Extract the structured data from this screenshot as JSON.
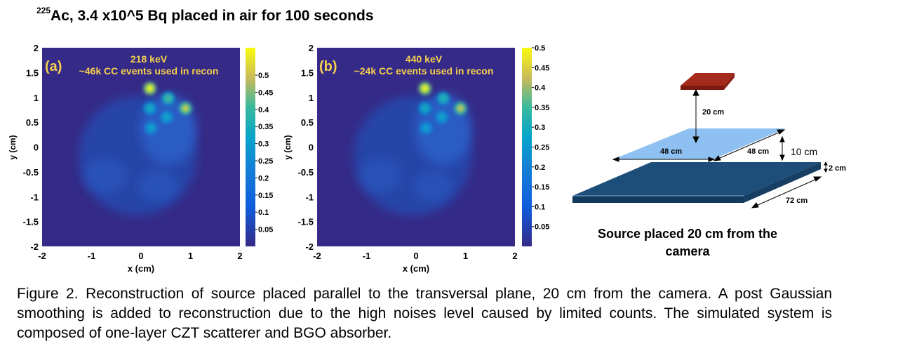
{
  "title": {
    "superscript": "225",
    "text": "Ac, 3.4 x10^5 Bq placed in air for 100 seconds"
  },
  "chart_data": [
    {
      "type": "heatmap",
      "panel_label": "(a)",
      "energy": "218 keV",
      "events": "~46k CC events used in recon",
      "xlabel": "x (cm)",
      "ylabel": "y (cm)",
      "xlim": [
        -2,
        2
      ],
      "ylim": [
        -2,
        2
      ],
      "x_ticks": [
        "-2",
        "-1",
        "0",
        "1",
        "2"
      ],
      "y_ticks": [
        "2",
        "1.5",
        "1",
        "0.5",
        "0",
        "-0.5",
        "-1",
        "-1.5",
        "-2"
      ],
      "colorbar_range": [
        0,
        0.58
      ],
      "colorbar_ticks": [
        "0.5",
        "0.45",
        "0.4",
        "0.35",
        "0.3",
        "0.25",
        "0.2",
        "0.15",
        "0.1",
        "0.05"
      ],
      "hotspots": [
        {
          "x": 0.18,
          "y": 1.18,
          "value": 0.58
        },
        {
          "x": 0.55,
          "y": 0.98,
          "value": 0.42
        },
        {
          "x": 0.9,
          "y": 0.78,
          "value": 0.52
        },
        {
          "x": 0.18,
          "y": 0.78,
          "value": 0.35
        },
        {
          "x": 0.52,
          "y": 0.6,
          "value": 0.33
        },
        {
          "x": 0.2,
          "y": 0.38,
          "value": 0.32
        }
      ]
    },
    {
      "type": "heatmap",
      "panel_label": "(b)",
      "energy": "440 keV",
      "events": "~24k CC events used in recon",
      "xlabel": "x (cm)",
      "ylabel": "y (cm)",
      "xlim": [
        -2,
        2
      ],
      "ylim": [
        -2,
        2
      ],
      "x_ticks": [
        "-2",
        "-1",
        "0",
        "1",
        "2"
      ],
      "y_ticks": [
        "2",
        "1.5",
        "1",
        "0.5",
        "0",
        "-0.5",
        "-1",
        "-1.5",
        "-2"
      ],
      "colorbar_range": [
        0,
        0.5
      ],
      "colorbar_ticks": [
        "0.5",
        "0.45",
        "0.4",
        "0.35",
        "0.3",
        "0.25",
        "0.2",
        "0.15",
        "0.1",
        "0.05"
      ],
      "hotspots": [
        {
          "x": 0.18,
          "y": 1.18,
          "value": 0.5
        },
        {
          "x": 0.55,
          "y": 0.98,
          "value": 0.33
        },
        {
          "x": 0.9,
          "y": 0.78,
          "value": 0.44
        },
        {
          "x": 0.18,
          "y": 0.78,
          "value": 0.3
        },
        {
          "x": 0.52,
          "y": 0.6,
          "value": 0.28
        },
        {
          "x": 0.2,
          "y": 0.38,
          "value": 0.27
        }
      ]
    }
  ],
  "diagram": {
    "source_distance": "20 cm",
    "plane_width": "48 cm",
    "plane_depth": "48 cm",
    "plane_gap": "10 cm",
    "detector_thickness": "2 cm",
    "detector_length": "72 cm",
    "source_color": "#a52a1c",
    "plane_color": "#8ec1f2",
    "detector_color": "#1d4e7a",
    "label_line1": "Source placed 20 cm from the",
    "label_line2": "camera"
  },
  "caption": "Figure 2. Reconstruction of source placed parallel to the transversal plane, 20 cm from the camera. A post Gaussian smoothing is added to reconstruction due to the high noises level caused by limited counts. The simulated system is composed of one-layer CZT scatterer and BGO absorber."
}
